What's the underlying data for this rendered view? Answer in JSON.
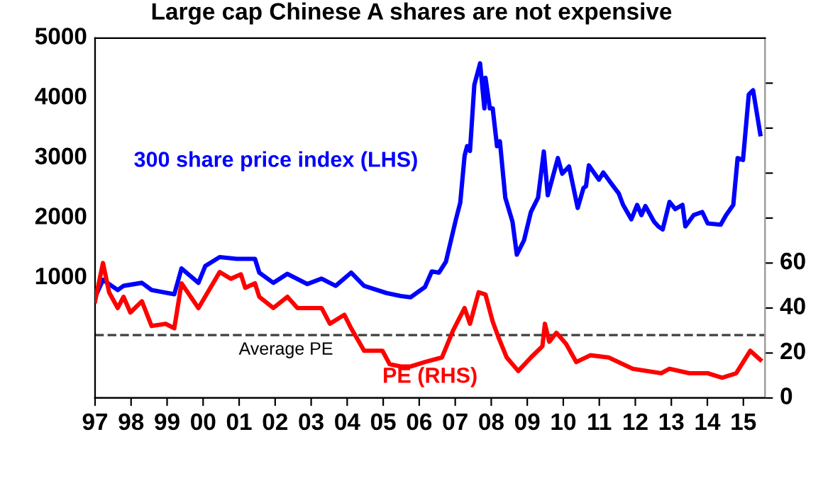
{
  "chart_data": {
    "type": "line",
    "title": "Large cap Chinese A shares are not expensive",
    "xlim": [
      1997,
      2015.6
    ],
    "xticks": [
      {
        "value": 1997,
        "label": "97"
      },
      {
        "value": 1998,
        "label": "98"
      },
      {
        "value": 1999,
        "label": "99"
      },
      {
        "value": 2000,
        "label": "00"
      },
      {
        "value": 2001,
        "label": "01"
      },
      {
        "value": 2002,
        "label": "02"
      },
      {
        "value": 2003,
        "label": "03"
      },
      {
        "value": 2004,
        "label": "04"
      },
      {
        "value": 2005,
        "label": "05"
      },
      {
        "value": 2006,
        "label": "06"
      },
      {
        "value": 2007,
        "label": "07"
      },
      {
        "value": 2008,
        "label": "08"
      },
      {
        "value": 2009,
        "label": "09"
      },
      {
        "value": 2010,
        "label": "10"
      },
      {
        "value": 2011,
        "label": "11"
      },
      {
        "value": 2012,
        "label": "12"
      },
      {
        "value": 2013,
        "label": "13"
      },
      {
        "value": 2014,
        "label": "14"
      },
      {
        "value": 2015,
        "label": "15"
      }
    ],
    "ylim": [
      -1000,
      5000
    ],
    "yticks": [
      1000,
      2000,
      3000,
      4000,
      5000
    ],
    "y2lim": [
      0,
      160
    ],
    "y2ticks": [
      0,
      20,
      40,
      60,
      {
        "value": 80,
        "label": null
      },
      {
        "value": 100,
        "label": null
      },
      {
        "value": 120,
        "label": null
      },
      {
        "value": 140,
        "label": null
      }
    ],
    "grid": false,
    "legend": false,
    "line_style": "solid",
    "marker": "none",
    "series": [
      {
        "name": "300 share price index (LHS)",
        "color": "#0000ff",
        "axis": "y",
        "x": [
          1997.0,
          1997.22,
          1997.63,
          1997.79,
          1998.3,
          1998.57,
          1999.2,
          1999.4,
          1999.87,
          2000.06,
          2000.46,
          2000.93,
          2001.44,
          2001.56,
          2001.95,
          2002.34,
          2002.89,
          2003.29,
          2003.68,
          2004.11,
          2004.47,
          2005.09,
          2005.49,
          2005.76,
          2006.16,
          2006.35,
          2006.55,
          2006.74,
          2007.02,
          2007.14,
          2007.26,
          2007.33,
          2007.41,
          2007.53,
          2007.69,
          2007.81,
          2007.84,
          2007.96,
          2008.04,
          2008.16,
          2008.24,
          2008.39,
          2008.59,
          2008.71,
          2008.91,
          2009.1,
          2009.3,
          2009.46,
          2009.57,
          2009.85,
          2009.97,
          2010.16,
          2010.4,
          2010.56,
          2010.63,
          2010.71,
          2010.99,
          2011.11,
          2011.34,
          2011.54,
          2011.66,
          2011.89,
          2012.05,
          2012.17,
          2012.28,
          2012.52,
          2012.64,
          2012.76,
          2012.95,
          2013.11,
          2013.31,
          2013.39,
          2013.62,
          2013.86,
          2014.01,
          2014.37,
          2014.52,
          2014.72,
          2014.84,
          2014.99,
          2015.15,
          2015.27,
          2015.47
        ],
        "values": [
          680,
          970,
          800,
          870,
          920,
          800,
          730,
          1160,
          920,
          1200,
          1350,
          1320,
          1320,
          1090,
          920,
          1070,
          900,
          990,
          870,
          1090,
          870,
          750,
          700,
          680,
          850,
          1110,
          1090,
          1270,
          1980,
          2260,
          3040,
          3200,
          3120,
          4220,
          4580,
          3830,
          4340,
          3830,
          3830,
          3200,
          3280,
          2340,
          1940,
          1390,
          1630,
          2100,
          2340,
          3110,
          2380,
          3000,
          2740,
          2860,
          2170,
          2500,
          2530,
          2880,
          2640,
          2760,
          2570,
          2410,
          2220,
          1980,
          2220,
          2050,
          2200,
          1940,
          1860,
          1810,
          2270,
          2150,
          2220,
          1860,
          2050,
          2100,
          1910,
          1890,
          2050,
          2220,
          3000,
          2970,
          4060,
          4130,
          3400
        ]
      },
      {
        "name": "PE (RHS)",
        "color": "#ff0000",
        "axis": "y2",
        "x": [
          1997.0,
          1997.22,
          1997.39,
          1997.63,
          1997.79,
          1997.98,
          1998.3,
          1998.57,
          1998.96,
          1999.2,
          1999.4,
          1999.87,
          2000.46,
          2000.77,
          2001.05,
          2001.17,
          2001.44,
          2001.56,
          2001.95,
          2002.34,
          2002.62,
          2003.29,
          2003.52,
          2003.92,
          2004.11,
          2004.47,
          2004.98,
          2005.18,
          2005.49,
          2005.76,
          2006.16,
          2006.63,
          2006.94,
          2007.26,
          2007.41,
          2007.65,
          2007.84,
          2008.04,
          2008.2,
          2008.43,
          2008.75,
          2009.1,
          2009.42,
          2009.49,
          2009.61,
          2009.81,
          2010.08,
          2010.36,
          2010.75,
          2011.26,
          2011.93,
          2012.72,
          2012.95,
          2013.5,
          2014.01,
          2014.41,
          2014.8,
          2015.19,
          2015.47
        ],
        "values": [
          43,
          60,
          47,
          40,
          45,
          38,
          43,
          32,
          33,
          31,
          51,
          40,
          56,
          53,
          55,
          49,
          51,
          45,
          40,
          45,
          40,
          40,
          33,
          37,
          31,
          21,
          21,
          15,
          14,
          14,
          16,
          18,
          30,
          40,
          33,
          47,
          46,
          34,
          27,
          18,
          12,
          18,
          23,
          33,
          25,
          29,
          24,
          16,
          19,
          18,
          13,
          11,
          13,
          11,
          11,
          9,
          11,
          21,
          17
        ]
      }
    ],
    "ref_lines": [
      {
        "axis": "y2",
        "value": 28,
        "label": "Average PE",
        "color": "#404040",
        "line_style": "dashed"
      }
    ]
  }
}
